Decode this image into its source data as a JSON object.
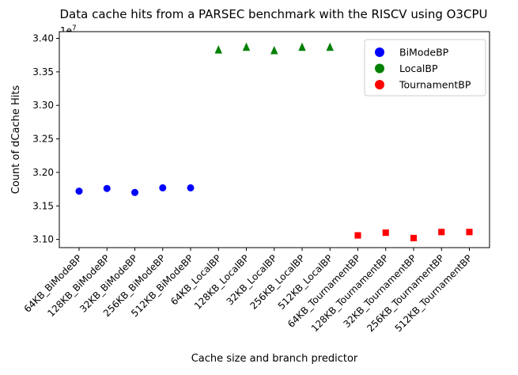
{
  "chart_data": {
    "type": "scatter",
    "title": "Data cache hits from a PARSEC benchmark with the RISCV using O3CPU",
    "xlabel": "Cache size and branch predictor",
    "ylabel": "Count of dCache Hits",
    "offset_label": "1e7",
    "categories": [
      "64KB_BiModeBP",
      "128KB_BiModeBP",
      "32KB_BiModeBP",
      "256KB_BiModeBP",
      "512KB_BiModeBP",
      "64KB_LocalBP",
      "128KB_LocalBP",
      "32KB_LocalBP",
      "256KB_LocalBP",
      "512KB_LocalBP",
      "64KB_TournamentBP",
      "128KB_TournamentBP",
      "32KB_TournamentBP",
      "256KB_TournamentBP",
      "512KB_TournamentBP"
    ],
    "yticks": [
      3.1,
      3.15,
      3.2,
      3.25,
      3.3,
      3.35,
      3.4
    ],
    "ytick_labels": [
      "3.10",
      "3.15",
      "3.20",
      "3.25",
      "3.30",
      "3.35",
      "3.40"
    ],
    "ylim": [
      3.0875,
      3.4025
    ],
    "grid": false,
    "legend_position": "top-right",
    "series": [
      {
        "name": "BiModeBP",
        "color": "#0000ff",
        "marker": "circle",
        "x": [
          "64KB_BiModeBP",
          "128KB_BiModeBP",
          "32KB_BiModeBP",
          "256KB_BiModeBP",
          "512KB_BiModeBP"
        ],
        "values": [
          3.172,
          3.176,
          3.17,
          3.177,
          3.177
        ]
      },
      {
        "name": "LocalBP",
        "color": "#008000",
        "marker": "triangle",
        "x": [
          "64KB_LocalBP",
          "128KB_LocalBP",
          "32KB_LocalBP",
          "256KB_LocalBP",
          "512KB_LocalBP"
        ],
        "values": [
          3.383,
          3.387,
          3.382,
          3.387,
          3.387
        ]
      },
      {
        "name": "TournamentBP",
        "color": "#ff0000",
        "marker": "square",
        "x": [
          "64KB_TournamentBP",
          "128KB_TournamentBP",
          "32KB_TournamentBP",
          "256KB_TournamentBP",
          "512KB_TournamentBP"
        ],
        "values": [
          3.106,
          3.11,
          3.102,
          3.111,
          3.111
        ]
      }
    ]
  }
}
